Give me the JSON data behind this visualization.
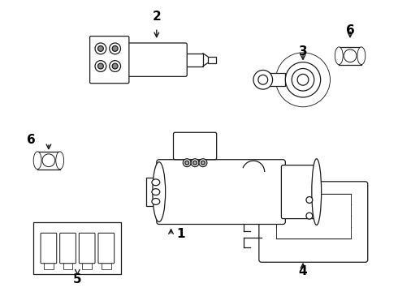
{
  "background_color": "#ffffff",
  "line_color": "#1a1a1a",
  "text_color": "#000000",
  "fig_width": 4.9,
  "fig_height": 3.6,
  "dpi": 100,
  "label_fontsize": 11
}
